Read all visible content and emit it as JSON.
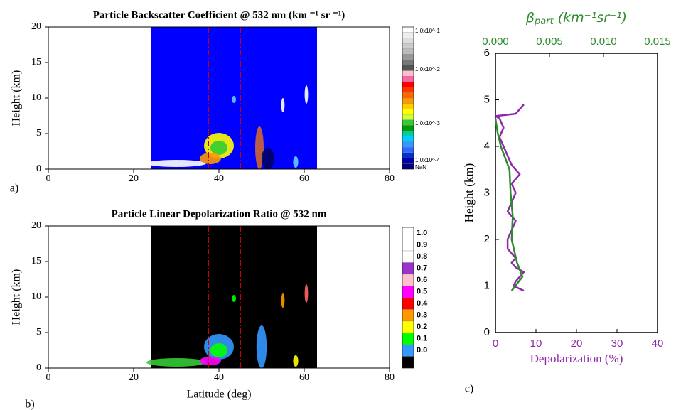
{
  "chart_data": [
    {
      "type": "heatmap",
      "panel_label": "a)",
      "title": "Particle Backscatter Coefficient @ 532 nm (km ⁻¹ sr ⁻¹)",
      "ylabel": "Height (km)",
      "xlim": [
        0,
        80
      ],
      "xticks": [
        0,
        20,
        40,
        60,
        80
      ],
      "ylim": [
        0,
        20
      ],
      "yticks": [
        0,
        5,
        10,
        15,
        20
      ],
      "background": "#0000ff",
      "coverage": [
        24,
        63
      ],
      "markers": [
        37.5,
        45
      ],
      "marker_color": "#cc0000",
      "colorbar": {
        "labels": [
          "1.0x10^-1",
          "1.0x10^-2",
          "1.0x10^-3",
          "1.0x10^-4",
          "NaN"
        ]
      }
    },
    {
      "type": "heatmap",
      "panel_label": "b)",
      "title": "Particle Linear Depolarization Ratio @ 532 nm",
      "xlabel": "Latitude (deg)",
      "ylabel": "Height (km)",
      "xlim": [
        0,
        80
      ],
      "xticks": [
        0,
        20,
        40,
        60,
        80
      ],
      "ylim": [
        0,
        20
      ],
      "yticks": [
        0,
        5,
        10,
        15,
        20
      ],
      "background": "#000000",
      "coverage": [
        24,
        63
      ],
      "markers": [
        37.5,
        45
      ],
      "marker_color": "#cc0000",
      "colorbar": {
        "labels": [
          "1.0",
          "0.9",
          "0.8",
          "0.7",
          "0.6",
          "0.5",
          "0.4",
          "0.3",
          "0.2",
          "0.1",
          "0.0"
        ],
        "colors": [
          "#ffffff",
          "#ffffff",
          "#ffffff",
          "#9933cc",
          "#ffc0cb",
          "#ff00ff",
          "#ff0000",
          "#ff9900",
          "#ffff00",
          "#00ff00",
          "#3399ff",
          "#000000"
        ]
      }
    },
    {
      "type": "line",
      "panel_label": "c)",
      "xlabel": "Depolarization (%)",
      "ylabel": "Height (km)",
      "x2label": {
        "symbol": "β",
        "subscript": "part",
        "unit": " (km⁻¹sr⁻¹)"
      },
      "xlim": [
        0,
        40
      ],
      "xticks": [
        0,
        10,
        20,
        30,
        40
      ],
      "x2lim": [
        0,
        0.015
      ],
      "x2ticks": [
        {
          "value": 0,
          "label": "0.000"
        },
        {
          "value": 0.005,
          "label": "0.005"
        },
        {
          "value": 0.01,
          "label": "0.010"
        },
        {
          "value": 0.015,
          "label": "0.015"
        }
      ],
      "ylim": [
        0,
        6
      ],
      "yticks": [
        0,
        1,
        2,
        3,
        4,
        5,
        6
      ],
      "x_color": "#8e2aa8",
      "x2_color": "#2e8b2e",
      "series": [
        {
          "color": "#8e2aa8",
          "axis": "x",
          "heights": [
            0.9,
            1.0,
            1.1,
            1.2,
            1.3,
            1.4,
            1.5,
            1.6,
            1.8,
            2.0,
            2.2,
            2.4,
            2.6,
            2.8,
            3.0,
            3.2,
            3.4,
            3.6,
            3.8,
            4.0,
            4.2,
            4.4,
            4.6,
            4.65,
            4.7,
            4.8,
            4.9
          ],
          "values": [
            7,
            4.5,
            5,
            6,
            7,
            5,
            4,
            5,
            3,
            3,
            4,
            5,
            3,
            4,
            5,
            4,
            6,
            4,
            3,
            2,
            1,
            2,
            1,
            0,
            5,
            6,
            7
          ]
        },
        {
          "color": "#2e8b2e",
          "axis": "x2",
          "heights": [
            0.9,
            1.2,
            1.5,
            2.0,
            2.5,
            3.0,
            3.5,
            4.0,
            4.3,
            4.6
          ],
          "values": [
            0.0015,
            0.0025,
            0.002,
            0.0015,
            0.0016,
            0.0014,
            0.0013,
            0.0005,
            0.0002,
            0
          ]
        }
      ]
    }
  ]
}
